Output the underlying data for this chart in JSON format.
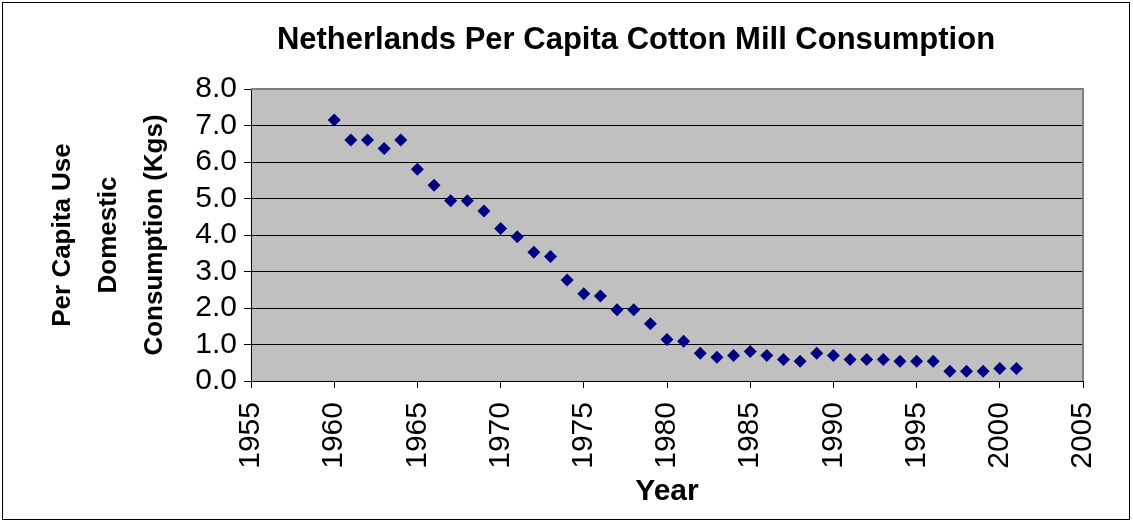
{
  "chart_data": {
    "type": "scatter",
    "title": "Netherlands Per Capita Cotton Mill Consumption",
    "xlabel": "Year",
    "ylabel": "Per Capita Use Domestic Consumption (Kgs)",
    "x": [
      1960,
      1961,
      1962,
      1963,
      1964,
      1965,
      1966,
      1967,
      1968,
      1969,
      1970,
      1971,
      1972,
      1973,
      1974,
      1975,
      1976,
      1977,
      1978,
      1979,
      1980,
      1981,
      1982,
      1983,
      1984,
      1985,
      1986,
      1987,
      1988,
      1989,
      1990,
      1991,
      1992,
      1993,
      1994,
      1995,
      1996,
      1997,
      1998,
      1999,
      2000,
      2001
    ],
    "series": [
      {
        "color": "#000080",
        "values": [
          7.15,
          6.6,
          6.6,
          6.37,
          6.6,
          5.8,
          5.36,
          4.94,
          4.94,
          4.66,
          4.18,
          3.95,
          3.53,
          3.41,
          2.77,
          2.39,
          2.33,
          1.95,
          1.95,
          1.57,
          1.14,
          1.09,
          0.76,
          0.65,
          0.7,
          0.81,
          0.7,
          0.59,
          0.54,
          0.76,
          0.7,
          0.59,
          0.59,
          0.59,
          0.54,
          0.54,
          0.54,
          0.27,
          0.27,
          0.27,
          0.34,
          0.34
        ]
      }
    ],
    "xlim": [
      1955,
      2005
    ],
    "xticks": [
      1955,
      1960,
      1965,
      1970,
      1975,
      1980,
      1985,
      1990,
      1995,
      2000,
      2005
    ],
    "ylim": [
      0,
      8
    ],
    "yticks": [
      {
        "value": 0,
        "label": "0.0"
      },
      {
        "value": 1,
        "label": "1.0"
      },
      {
        "value": 2,
        "label": "2.0"
      },
      {
        "value": 3,
        "label": "3.0"
      },
      {
        "value": 4,
        "label": "4.0"
      },
      {
        "value": 5,
        "label": "5.0"
      },
      {
        "value": 6,
        "label": "6.0"
      },
      {
        "value": 7,
        "label": "7.0"
      },
      {
        "value": 8,
        "label": "8.0"
      }
    ],
    "grid": "y",
    "marker": "diamond"
  }
}
